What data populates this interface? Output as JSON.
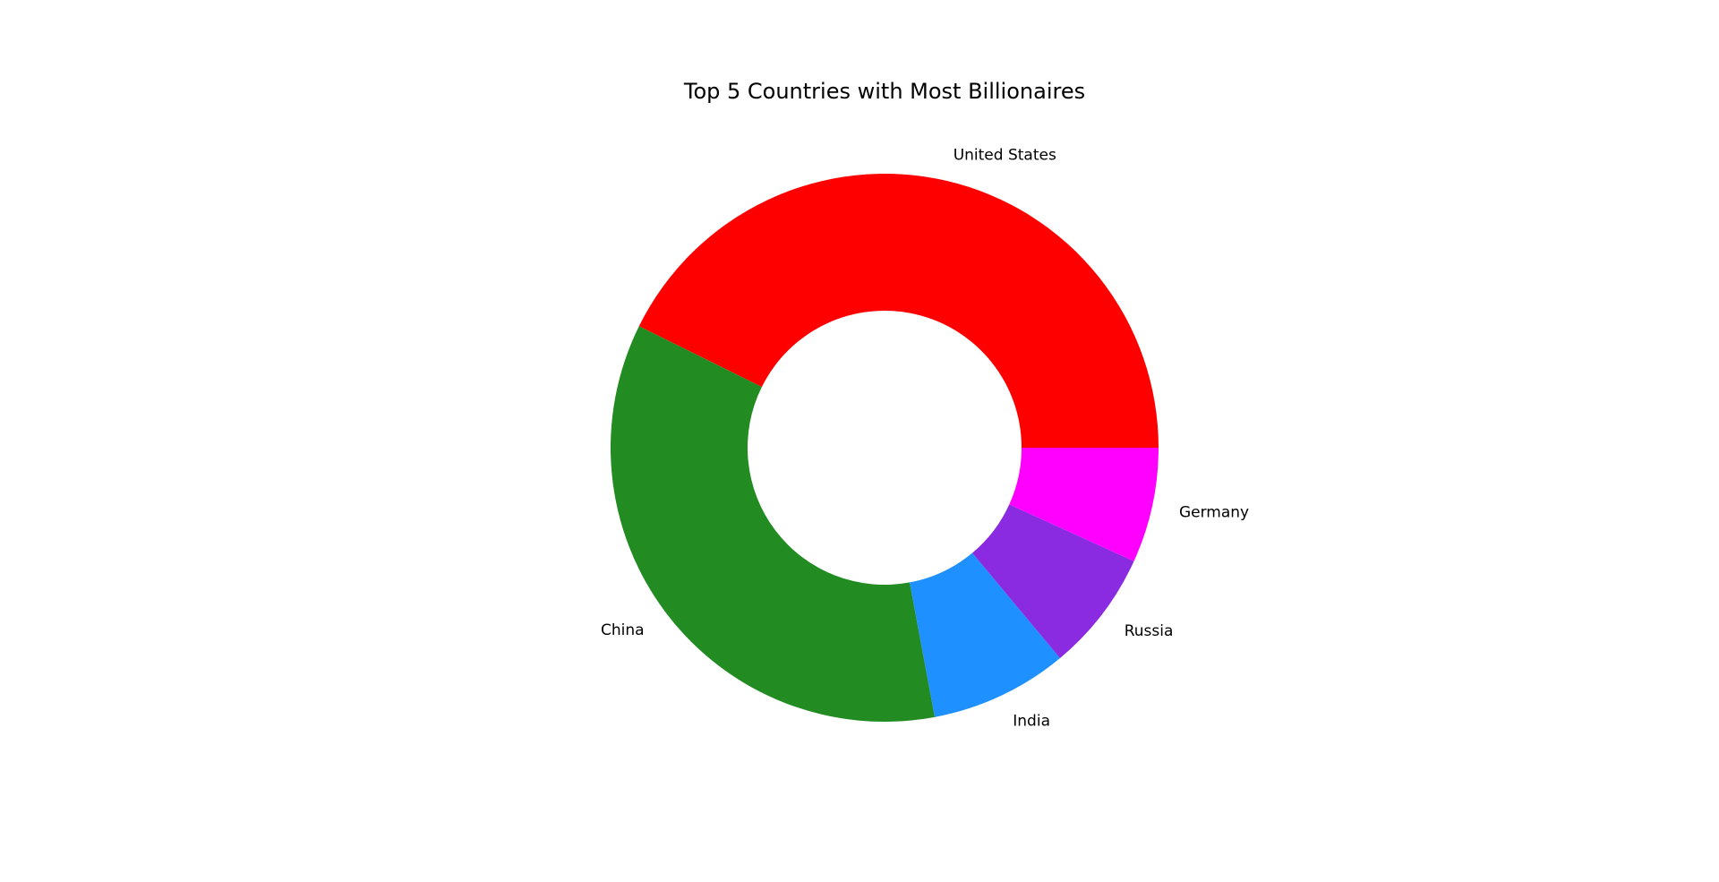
{
  "chart_data": {
    "type": "pie",
    "style": "donut",
    "title": "Top 5 Countries with Most Billionaires",
    "start_angle_deg": 0,
    "direction": "counterclockwise",
    "slices": [
      {
        "label": "United States",
        "value": 735,
        "color": "#ff0000"
      },
      {
        "label": "China",
        "value": 607,
        "color": "#228b22"
      },
      {
        "label": "India",
        "value": 140,
        "color": "#1e90ff"
      },
      {
        "label": "Russia",
        "value": 123,
        "color": "#8a2be2"
      },
      {
        "label": "Germany",
        "value": 117,
        "color": "#ff00ff"
      }
    ]
  }
}
